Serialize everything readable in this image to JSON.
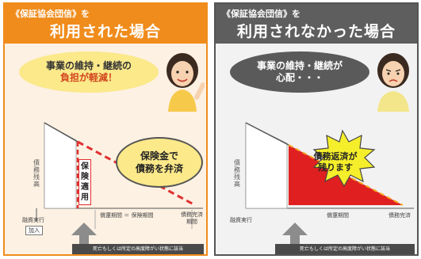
{
  "left": {
    "banner_sub": "《保証協会団信》を",
    "banner_main": "利用された場合",
    "bubble_line1": "事業の維持・継続の",
    "bubble_line2": "負担が軽減！",
    "y_axis_label": "債務残高",
    "insurance_label": "保険適用",
    "callout_line1": "保険金で",
    "callout_line2": "債務を弁済",
    "x_start_label": "融資実行",
    "join_tag": "加入",
    "period_label": "償還期間 ＝ 保険期間",
    "end_label_line1": "債務完済",
    "end_label_line2": "期間",
    "bottom_note": "死亡もしくは所定の高度障がい状態に該当",
    "colors": {
      "accent": "#f08c1c",
      "debt_red": "#e03030",
      "bubble": "#fbe98a"
    }
  },
  "right": {
    "banner_sub": "《保証協会団信》を",
    "banner_main": "利用されなかった場合",
    "bubble_line1": "事業の維持・継続が",
    "bubble_line2": "心配・・・",
    "y_axis_label": "債務残高",
    "burst_line1": "債務返済が",
    "burst_line2": "残ります",
    "x_start_label": "融資実行",
    "period_label": "償還期間",
    "end_label": "債務完済",
    "bottom_note": "死亡もしくは所定の高度障がい状態に該当",
    "colors": {
      "accent": "#5e5e5e",
      "debt_red": "#e02020",
      "burst": "#f5ee2a"
    }
  }
}
